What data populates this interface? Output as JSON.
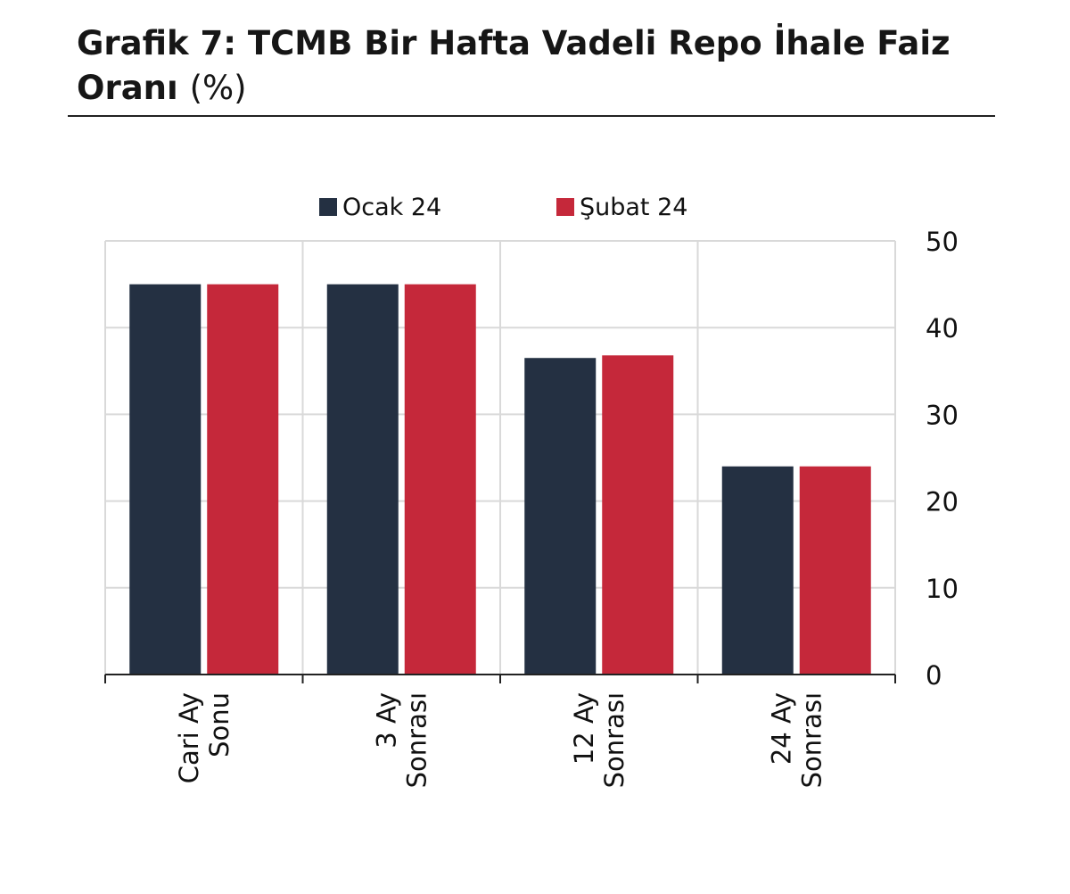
{
  "title": {
    "main": "Grafik 7: TCMB Bir Hafta Vadeli Repo İhale Faiz Oranı",
    "unit": "(%)"
  },
  "colors": {
    "ocak": "#243042",
    "subat": "#c5283a",
    "grid": "#d9d9d9",
    "axis": "#222222"
  },
  "chart_data": {
    "type": "bar",
    "categories": [
      [
        "Cari Ay",
        "Sonu"
      ],
      [
        "3 Ay",
        "Sonrası"
      ],
      [
        "12 Ay",
        "Sonrası"
      ],
      [
        "24 Ay",
        "Sonrası"
      ]
    ],
    "series": [
      {
        "name": "Ocak 24",
        "values": [
          45,
          45,
          36.5,
          24
        ]
      },
      {
        "name": "Şubat 24",
        "values": [
          45,
          45,
          36.8,
          24
        ]
      }
    ],
    "ylim": [
      0,
      50
    ],
    "yticks": [
      0,
      10,
      20,
      30,
      40,
      50
    ],
    "yaxis_side": "right",
    "grid": true,
    "legend": "top",
    "xlabel": "",
    "ylabel": ""
  }
}
